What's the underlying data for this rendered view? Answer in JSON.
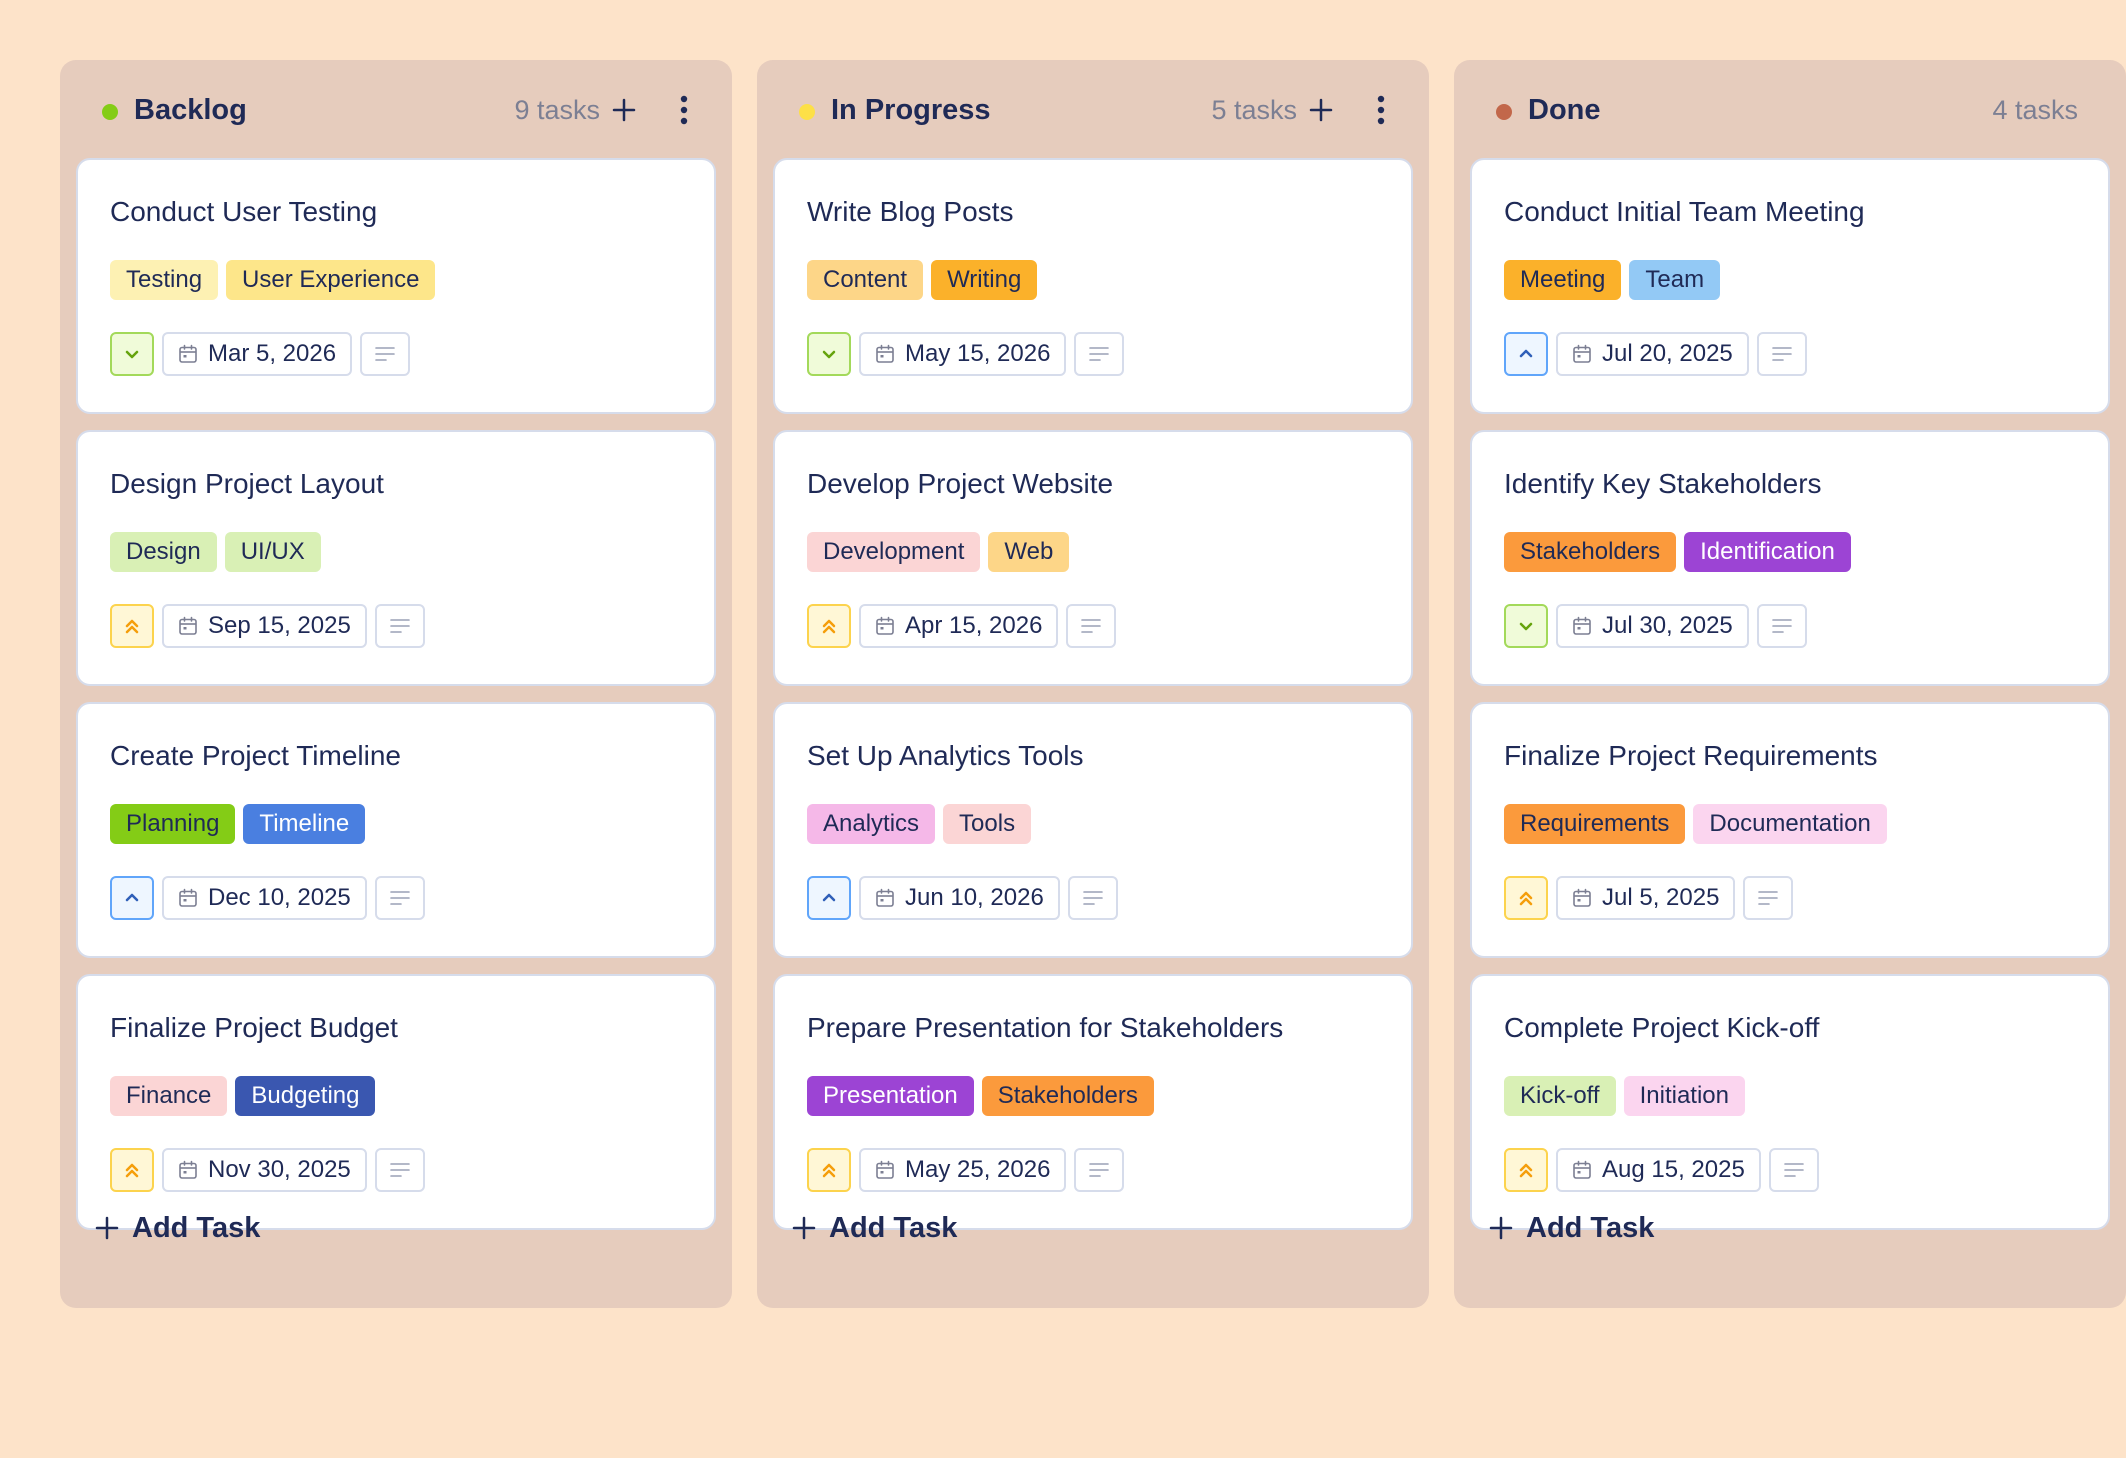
{
  "columns": [
    {
      "title": "Backlog",
      "count": "9 tasks",
      "dot_color": "#84cc16",
      "show_actions": true,
      "add_task_label": "Add Task",
      "cards": [
        {
          "title": "Conduct User Testing",
          "tags": [
            {
              "label": "Testing",
              "bg": "#fdf1b3",
              "fg": "#1f2a56"
            },
            {
              "label": "User Experience",
              "bg": "#fde68a",
              "fg": "#1f2a56"
            }
          ],
          "priority": "low",
          "date": "Mar 5, 2026"
        },
        {
          "title": "Design Project Layout",
          "tags": [
            {
              "label": "Design",
              "bg": "#d9f0b5",
              "fg": "#1f2a56"
            },
            {
              "label": "UI/UX",
              "bg": "#d9f0b5",
              "fg": "#1f2a56"
            }
          ],
          "priority": "highest",
          "date": "Sep 15, 2025"
        },
        {
          "title": "Create Project Timeline",
          "tags": [
            {
              "label": "Planning",
              "bg": "#84cc16",
              "fg": "#1f2a56"
            },
            {
              "label": "Timeline",
              "bg": "#4a7fe0",
              "fg": "#ffffff"
            }
          ],
          "priority": "medium",
          "date": "Dec 10, 2025"
        },
        {
          "title": "Finalize Project Budget",
          "tags": [
            {
              "label": "Finance",
              "bg": "#fbd5d5",
              "fg": "#1f2a56"
            },
            {
              "label": "Budgeting",
              "bg": "#3a57b0",
              "fg": "#ffffff"
            }
          ],
          "priority": "highest",
          "date": "Nov 30, 2025"
        }
      ]
    },
    {
      "title": "In Progress",
      "count": "5 tasks",
      "dot_color": "#fde047",
      "show_actions": true,
      "add_task_label": "Add Task",
      "cards": [
        {
          "title": "Write Blog Posts",
          "tags": [
            {
              "label": "Content",
              "bg": "#fdd688",
              "fg": "#1f2a56"
            },
            {
              "label": "Writing",
              "bg": "#fbb12a",
              "fg": "#1f2a56"
            }
          ],
          "priority": "low",
          "date": "May 15, 2026"
        },
        {
          "title": "Develop Project Website",
          "tags": [
            {
              "label": "Development",
              "bg": "#fbd5d5",
              "fg": "#1f2a56"
            },
            {
              "label": "Web",
              "bg": "#fdd688",
              "fg": "#1f2a56"
            }
          ],
          "priority": "highest",
          "date": "Apr 15, 2026"
        },
        {
          "title": "Set Up Analytics Tools",
          "tags": [
            {
              "label": "Analytics",
              "bg": "#f5b8e8",
              "fg": "#1f2a56"
            },
            {
              "label": "Tools",
              "bg": "#fbd5d5",
              "fg": "#1f2a56"
            }
          ],
          "priority": "medium",
          "date": "Jun 10, 2026"
        },
        {
          "title": "Prepare Presentation for Stakeholders",
          "tags": [
            {
              "label": "Presentation",
              "bg": "#9c44d4",
              "fg": "#ffffff"
            },
            {
              "label": "Stakeholders",
              "bg": "#fb9a3c",
              "fg": "#1f2a56"
            }
          ],
          "priority": "highest",
          "date": "May 25, 2026"
        }
      ]
    },
    {
      "title": "Done",
      "count": "4 tasks",
      "dot_color": "#c2674a",
      "show_actions": false,
      "add_task_label": "Add Task",
      "cards": [
        {
          "title": "Conduct Initial Team Meeting",
          "tags": [
            {
              "label": "Meeting",
              "bg": "#fbb12a",
              "fg": "#1f2a56"
            },
            {
              "label": "Team",
              "bg": "#93c9f5",
              "fg": "#1f2a56"
            }
          ],
          "priority": "medium",
          "date": "Jul 20, 2025"
        },
        {
          "title": "Identify Key Stakeholders",
          "tags": [
            {
              "label": "Stakeholders",
              "bg": "#fb9a3c",
              "fg": "#1f2a56"
            },
            {
              "label": "Identification",
              "bg": "#9c44d4",
              "fg": "#ffffff"
            }
          ],
          "priority": "low",
          "date": "Jul 30, 2025"
        },
        {
          "title": "Finalize Project Requirements",
          "tags": [
            {
              "label": "Requirements",
              "bg": "#fb9a3c",
              "fg": "#1f2a56"
            },
            {
              "label": "Documentation",
              "bg": "#fbd5ef",
              "fg": "#1f2a56"
            }
          ],
          "priority": "highest",
          "date": "Jul 5, 2025"
        },
        {
          "title": "Complete Project Kick-off",
          "tags": [
            {
              "label": "Kick-off",
              "bg": "#d9f0b5",
              "fg": "#1f2a56"
            },
            {
              "label": "Initiation",
              "bg": "#fbd5ef",
              "fg": "#1f2a56"
            }
          ],
          "priority": "highest",
          "date": "Aug 15, 2025"
        }
      ]
    }
  ],
  "priority_styles": {
    "low": {
      "icon": "chevron-down-icon",
      "bg": "#f0fbd9",
      "border": "#a3d95a",
      "color": "#65a30d"
    },
    "medium": {
      "icon": "chevron-up-icon",
      "bg": "#eef6ff",
      "border": "#60a5fa",
      "color": "#2f5fb8"
    },
    "highest": {
      "icon": "double-chevron-up-icon",
      "bg": "#fff7d6",
      "border": "#fcd34d",
      "color": "#f59e0b"
    }
  }
}
